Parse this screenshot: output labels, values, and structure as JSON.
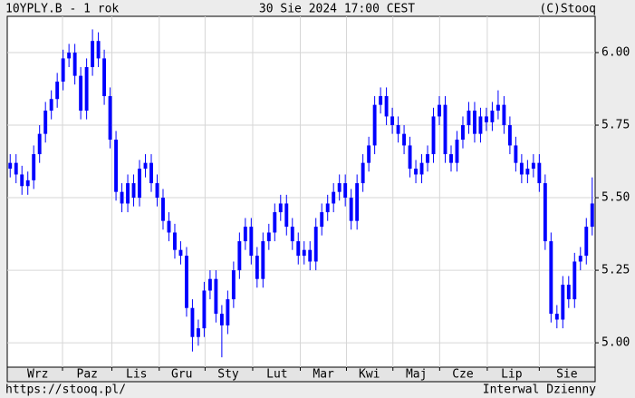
{
  "chart_data": {
    "type": "candlestick",
    "title": "10YPLY.B - 1 rok",
    "subtitle": "30 Sie 2024 17:00 CEST",
    "source": "(C)Stooq",
    "url": "https://stooq.pl/",
    "interval": "Interwal Dzienny",
    "color": "#0000ff",
    "grid": true,
    "xlim": [
      0,
      100
    ],
    "xticks": [
      {
        "value": 5.2,
        "label": "Wrz"
      },
      {
        "value": 13.6,
        "label": "Paz"
      },
      {
        "value": 22,
        "label": "Lis"
      },
      {
        "value": 29.7,
        "label": "Gru"
      },
      {
        "value": 37.6,
        "label": "Sty"
      },
      {
        "value": 45.9,
        "label": "Lut"
      },
      {
        "value": 53.8,
        "label": "Mar"
      },
      {
        "value": 61.6,
        "label": "Kwi"
      },
      {
        "value": 69.6,
        "label": "Maj"
      },
      {
        "value": 77.5,
        "label": "Cze"
      },
      {
        "value": 85.8,
        "label": "Lip"
      },
      {
        "value": 95.2,
        "label": "Sie"
      }
    ],
    "ylim": [
      4.916,
      6.125
    ],
    "yticks": [
      {
        "value": 5,
        "label": "5.00"
      },
      {
        "value": 5.25,
        "label": "5.25"
      },
      {
        "value": 5.5,
        "label": "5.50"
      },
      {
        "value": 5.75,
        "label": "5.75"
      },
      {
        "value": 6,
        "label": "6.00"
      }
    ],
    "open": [
      5.6,
      5.62,
      5.58,
      5.54,
      5.56,
      5.65,
      5.72,
      5.8,
      5.84,
      5.9,
      5.98,
      6.0,
      5.92,
      5.8,
      5.95,
      6.04,
      5.98,
      5.85,
      5.7,
      5.52,
      5.48,
      5.55,
      5.5,
      5.6,
      5.62,
      5.55,
      5.5,
      5.42,
      5.38,
      5.32,
      5.3,
      5.12,
      5.02,
      5.05,
      5.18,
      5.22,
      5.1,
      5.06,
      5.15,
      5.25,
      5.35,
      5.4,
      5.3,
      5.22,
      5.35,
      5.38,
      5.45,
      5.48,
      5.4,
      5.35,
      5.3,
      5.32,
      5.28,
      5.4,
      5.45,
      5.48,
      5.52,
      5.55,
      5.5,
      5.42,
      5.55,
      5.62,
      5.68,
      5.82,
      5.85,
      5.78,
      5.75,
      5.72,
      5.68,
      5.6,
      5.58,
      5.62,
      5.65,
      5.78,
      5.82,
      5.65,
      5.62,
      5.7,
      5.75,
      5.8,
      5.72,
      5.78,
      5.76,
      5.8,
      5.82,
      5.75,
      5.68,
      5.62,
      5.58,
      5.6,
      5.62,
      5.55,
      5.35,
      5.1,
      5.08,
      5.2,
      5.15,
      5.28,
      5.3,
      5.4
    ],
    "high": [
      5.65,
      5.65,
      5.61,
      5.59,
      5.68,
      5.75,
      5.83,
      5.87,
      5.93,
      6.01,
      6.03,
      6.03,
      5.95,
      5.98,
      6.08,
      6.07,
      6.01,
      5.88,
      5.73,
      5.55,
      5.58,
      5.58,
      5.63,
      5.65,
      5.65,
      5.58,
      5.53,
      5.45,
      5.41,
      5.35,
      5.33,
      5.15,
      5.08,
      5.21,
      5.25,
      5.25,
      5.13,
      5.18,
      5.28,
      5.38,
      5.43,
      5.43,
      5.33,
      5.38,
      5.41,
      5.48,
      5.51,
      5.51,
      5.43,
      5.38,
      5.35,
      5.35,
      5.43,
      5.48,
      5.51,
      5.55,
      5.58,
      5.58,
      5.53,
      5.58,
      5.65,
      5.71,
      5.85,
      5.88,
      5.88,
      5.81,
      5.78,
      5.75,
      5.71,
      5.63,
      5.65,
      5.68,
      5.81,
      5.85,
      5.85,
      5.68,
      5.73,
      5.78,
      5.83,
      5.83,
      5.81,
      5.81,
      5.83,
      5.87,
      5.85,
      5.78,
      5.71,
      5.65,
      5.63,
      5.65,
      5.65,
      5.58,
      5.38,
      5.13,
      5.23,
      5.23,
      5.31,
      5.33,
      5.43,
      5.57
    ],
    "low": [
      5.57,
      5.55,
      5.51,
      5.51,
      5.53,
      5.62,
      5.69,
      5.77,
      5.81,
      5.87,
      5.95,
      5.89,
      5.77,
      5.77,
      5.92,
      5.95,
      5.82,
      5.67,
      5.49,
      5.45,
      5.45,
      5.47,
      5.47,
      5.57,
      5.52,
      5.47,
      5.39,
      5.35,
      5.29,
      5.27,
      5.09,
      4.97,
      4.99,
      5.02,
      5.15,
      5.07,
      4.95,
      5.03,
      5.12,
      5.22,
      5.32,
      5.27,
      5.19,
      5.19,
      5.32,
      5.35,
      5.42,
      5.37,
      5.32,
      5.27,
      5.27,
      5.25,
      5.25,
      5.37,
      5.42,
      5.45,
      5.49,
      5.47,
      5.39,
      5.39,
      5.52,
      5.59,
      5.65,
      5.79,
      5.75,
      5.72,
      5.69,
      5.65,
      5.57,
      5.55,
      5.55,
      5.59,
      5.62,
      5.75,
      5.62,
      5.59,
      5.59,
      5.67,
      5.72,
      5.69,
      5.69,
      5.73,
      5.73,
      5.77,
      5.72,
      5.65,
      5.59,
      5.55,
      5.55,
      5.57,
      5.52,
      5.32,
      5.07,
      5.05,
      5.05,
      5.12,
      5.12,
      5.25,
      5.27,
      5.37
    ],
    "close": [
      5.62,
      5.58,
      5.54,
      5.56,
      5.65,
      5.72,
      5.8,
      5.84,
      5.9,
      5.98,
      6.0,
      5.92,
      5.8,
      5.95,
      6.04,
      5.98,
      5.85,
      5.7,
      5.52,
      5.48,
      5.55,
      5.5,
      5.6,
      5.62,
      5.55,
      5.5,
      5.42,
      5.38,
      5.32,
      5.3,
      5.12,
      5.02,
      5.05,
      5.18,
      5.22,
      5.1,
      5.06,
      5.15,
      5.25,
      5.35,
      5.4,
      5.3,
      5.22,
      5.35,
      5.38,
      5.45,
      5.48,
      5.4,
      5.35,
      5.3,
      5.32,
      5.28,
      5.4,
      5.45,
      5.48,
      5.52,
      5.55,
      5.5,
      5.42,
      5.55,
      5.62,
      5.68,
      5.82,
      5.85,
      5.78,
      5.75,
      5.72,
      5.68,
      5.6,
      5.58,
      5.62,
      5.65,
      5.78,
      5.82,
      5.65,
      5.62,
      5.7,
      5.75,
      5.8,
      5.72,
      5.78,
      5.76,
      5.8,
      5.82,
      5.75,
      5.68,
      5.62,
      5.58,
      5.6,
      5.62,
      5.55,
      5.35,
      5.1,
      5.08,
      5.2,
      5.15,
      5.28,
      5.3,
      5.4,
      5.48
    ]
  }
}
